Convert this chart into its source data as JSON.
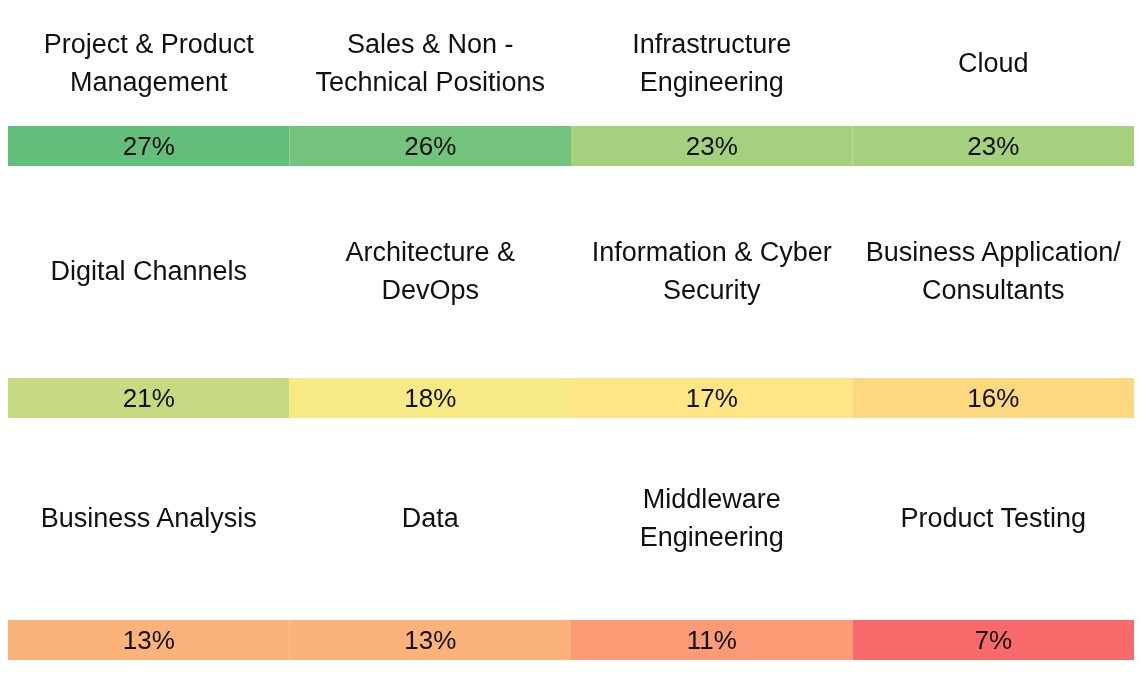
{
  "chart_data": [
    {
      "type": "other",
      "categories": [
        "Project & Product Management",
        "Sales & Non - Technical Positions",
        "Infrastructure Engineering",
        "Cloud"
      ],
      "values": [
        27,
        26,
        23,
        23
      ],
      "value_labels": [
        "27%",
        "26%",
        "23%",
        "23%"
      ]
    },
    {
      "type": "other",
      "categories": [
        "Digital Channels",
        "Architecture & DevOps",
        "Information & Cyber Security",
        "Business Application/ Consultants"
      ],
      "values": [
        21,
        18,
        17,
        16
      ],
      "value_labels": [
        "21%",
        "18%",
        "17%",
        "16%"
      ]
    },
    {
      "type": "other",
      "categories": [
        "Business Analysis",
        "Data",
        "Middleware Engineering",
        "Product Testing"
      ],
      "values": [
        13,
        13,
        11,
        7
      ],
      "value_labels": [
        "13%",
        "13%",
        "11%",
        "7%"
      ]
    }
  ]
}
